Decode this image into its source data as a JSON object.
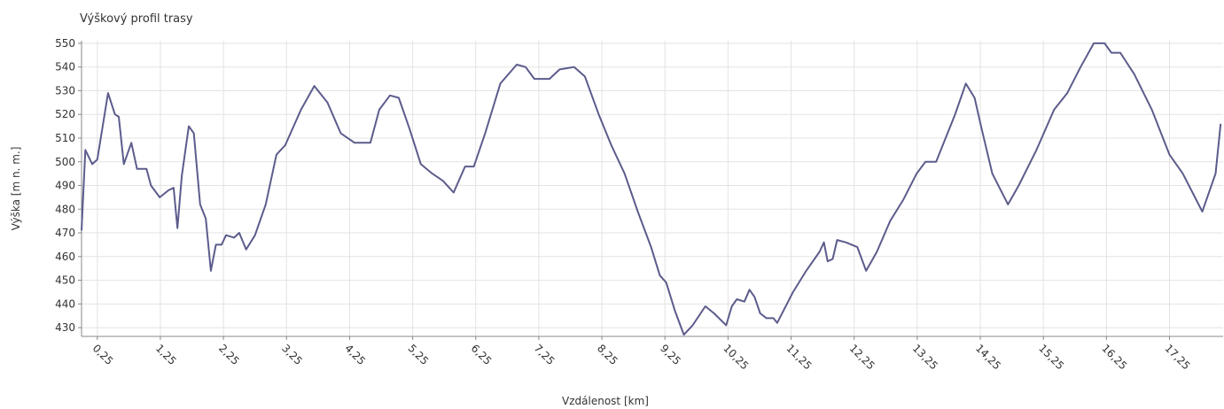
{
  "chart_data": {
    "type": "line",
    "title": "Výškový profil trasy",
    "x_label": "Vzdálenost [km]",
    "y_label": "Výška [m n. m.]",
    "color": "#5c5c8c",
    "grid": true,
    "x": [
      0,
      0.06,
      0.17,
      0.25,
      0.42,
      0.53,
      0.59,
      0.67,
      0.79,
      0.88,
      1.03,
      1.1,
      1.24,
      1.38,
      1.46,
      1.52,
      1.59,
      1.7,
      1.78,
      1.88,
      1.97,
      2.05,
      2.13,
      2.22,
      2.29,
      2.42,
      2.5,
      2.61,
      2.75,
      2.92,
      3.09,
      3.23,
      3.48,
      3.69,
      3.9,
      4.11,
      4.33,
      4.58,
      4.72,
      4.89,
      5.03,
      5.2,
      5.38,
      5.56,
      5.73,
      5.9,
      6.08,
      6.22,
      6.4,
      6.64,
      6.9,
      7.04,
      7.18,
      7.42,
      7.58,
      7.81,
      7.98,
      8.2,
      8.4,
      8.61,
      8.82,
      9.03,
      9.17,
      9.27,
      9.41,
      9.55,
      9.69,
      9.89,
      10.03,
      10.22,
      10.31,
      10.39,
      10.51,
      10.59,
      10.67,
      10.76,
      10.86,
      10.97,
      11.03,
      11.28,
      11.49,
      11.7,
      11.77,
      11.83,
      11.91,
      11.98,
      12.12,
      12.3,
      12.44,
      12.61,
      12.82,
      13.03,
      13.24,
      13.38,
      13.55,
      13.67,
      13.85,
      14.02,
      14.16,
      14.27,
      14.44,
      14.69,
      14.86,
      15.14,
      15.42,
      15.63,
      15.84,
      16.05,
      16.22,
      16.33,
      16.47,
      16.69,
      16.97,
      17.25,
      17.46,
      17.77,
      17.98,
      18.06
    ],
    "values": [
      471,
      505,
      499,
      501,
      529,
      520,
      519,
      499,
      508,
      497,
      497,
      490,
      485,
      488,
      489,
      472,
      494,
      515,
      512,
      482,
      476,
      454,
      465,
      465,
      469,
      468,
      470,
      463,
      469,
      482,
      503,
      507,
      522,
      532,
      525,
      512,
      508,
      508,
      522,
      528,
      527,
      514,
      499,
      495,
      492,
      487,
      498,
      498,
      512,
      533,
      541,
      540,
      535,
      535,
      539,
      540,
      536,
      520,
      507,
      495,
      479,
      464,
      452,
      449,
      437,
      427,
      431,
      439,
      436,
      431,
      439,
      442,
      441,
      446,
      443,
      436,
      434,
      434,
      432,
      445,
      454,
      462,
      466,
      458,
      459,
      467,
      466,
      464,
      454,
      462,
      475,
      484,
      495,
      500,
      500,
      508,
      520,
      533,
      527,
      514,
      495,
      482,
      490,
      505,
      522,
      529,
      540,
      550,
      550,
      546,
      546,
      537,
      522,
      503,
      495,
      479,
      495,
      516
    ],
    "xlim": [
      0,
      18.1
    ],
    "ylim": [
      426.3,
      551.1
    ],
    "xticks": [
      {
        "value": 0.25,
        "label": "0,25"
      },
      {
        "value": 1.25,
        "label": "1,25"
      },
      {
        "value": 2.25,
        "label": "2,25"
      },
      {
        "value": 3.25,
        "label": "3,25"
      },
      {
        "value": 4.25,
        "label": "4,25"
      },
      {
        "value": 5.25,
        "label": "5,25"
      },
      {
        "value": 6.25,
        "label": "6,25"
      },
      {
        "value": 7.25,
        "label": "7,25"
      },
      {
        "value": 8.25,
        "label": "8,25"
      },
      {
        "value": 9.25,
        "label": "9,25"
      },
      {
        "value": 10.25,
        "label": "10,25"
      },
      {
        "value": 11.25,
        "label": "11,25"
      },
      {
        "value": 12.25,
        "label": "12,25"
      },
      {
        "value": 13.25,
        "label": "13,25"
      },
      {
        "value": 14.25,
        "label": "14,25"
      },
      {
        "value": 15.25,
        "label": "15,25"
      },
      {
        "value": 16.25,
        "label": "16,25"
      },
      {
        "value": 17.25,
        "label": "17,25"
      }
    ],
    "yticks": [
      430,
      440,
      450,
      460,
      470,
      480,
      490,
      500,
      510,
      520,
      530,
      540,
      550
    ]
  }
}
